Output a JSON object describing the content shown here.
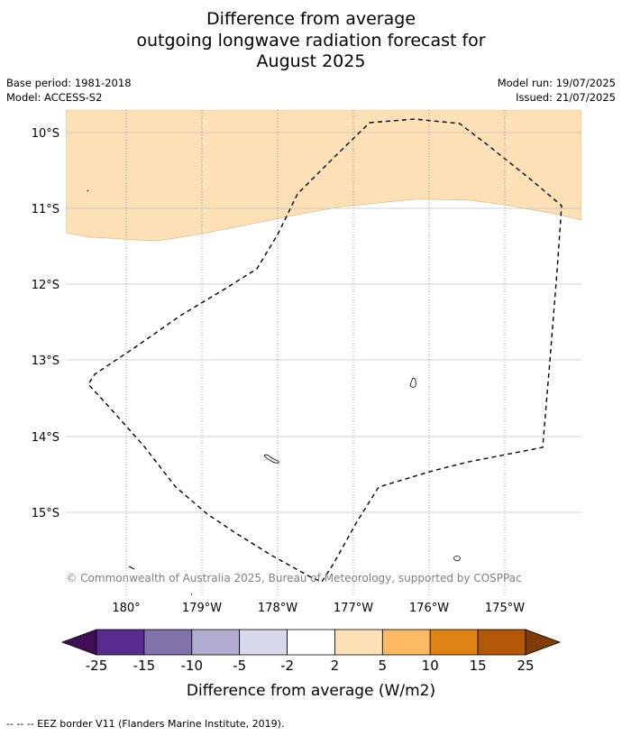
{
  "title": {
    "line1": "Difference from average",
    "line2": "outgoing longwave radiation forecast for",
    "line3": "August 2025"
  },
  "meta": {
    "base_period": "Base period: 1981-2018",
    "model": "Model: ACCESS-S2",
    "model_run": "Model run: 19/07/2025",
    "issued": "Issued: 21/07/2025"
  },
  "map": {
    "lat_labels": [
      "10°S",
      "11°S",
      "12°S",
      "13°S",
      "14°S",
      "15°S"
    ],
    "lon_labels": [
      "180°",
      "179°W",
      "178°W",
      "177°W",
      "176°W",
      "175°W"
    ],
    "copyright": "© Commonwealth of Australia 2025, Bureau of Meteorology, supported by COSPPac",
    "anomaly_fill_color": "#fde0b6",
    "anomaly_class": "2 to 5"
  },
  "colorbar": {
    "ticks": [
      "-25",
      "-15",
      "-10",
      "-5",
      "-2",
      "2",
      "5",
      "10",
      "15",
      "25"
    ],
    "colors": [
      "#3f0d59",
      "#5a2b8f",
      "#8073ac",
      "#b2abd2",
      "#d8daeb",
      "#ffffff",
      "#fee0b6",
      "#fdb863",
      "#e08214",
      "#b35806",
      "#7f3b08"
    ],
    "label": "Difference from average (W/m2)"
  },
  "footer": {
    "eez_note": "--  --  -- EEZ border V11 (Flanders Marine Institute, 2019)."
  }
}
